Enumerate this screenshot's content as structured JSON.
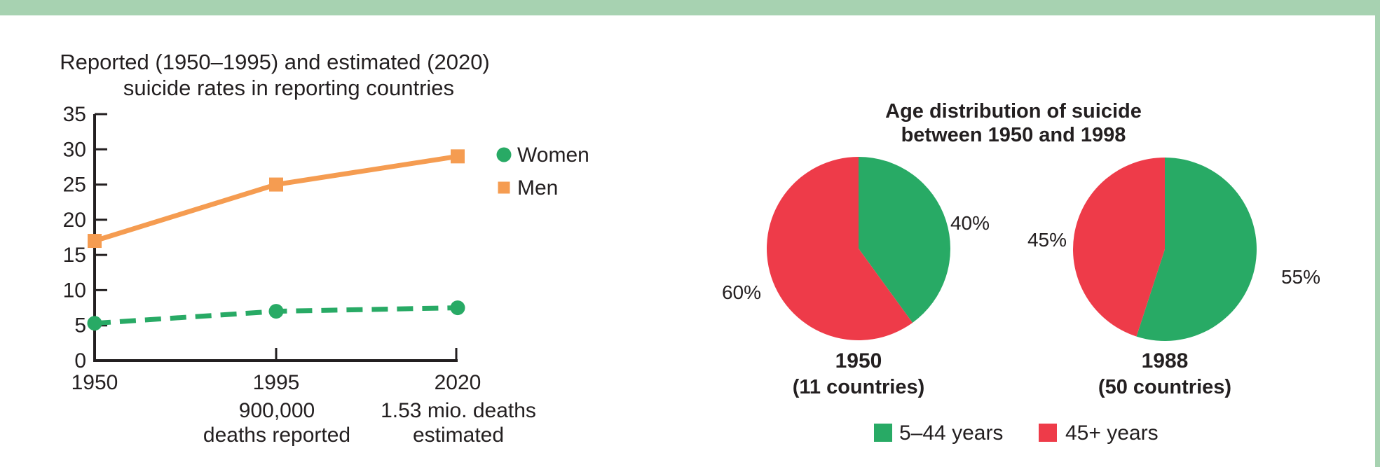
{
  "page": {
    "top_bar_color": "#a7d2b1",
    "right_bar_color": "#a7d2b1",
    "background": "#ffffff",
    "text_color": "#231f20"
  },
  "chart_data": [
    {
      "type": "line",
      "title_lines": [
        "Reported (1950–1995) and estimated (2020)",
        "suicide rates in reporting countries"
      ],
      "categories": [
        "1950",
        "1995",
        "2020"
      ],
      "category_sublabels": [
        [],
        [
          "900,000",
          "deaths reported"
        ],
        [
          "1.53 mio. deaths",
          "estimated"
        ]
      ],
      "ylim": [
        0,
        35
      ],
      "ytick_step": 5,
      "grid": false,
      "legend_position": "right",
      "series": [
        {
          "name": "Women",
          "values": [
            5.3,
            7,
            7.5
          ],
          "color": "#28aa65",
          "marker": "circle",
          "line": "dashed"
        },
        {
          "name": "Men",
          "values": [
            17,
            25,
            29
          ],
          "color": "#f59c51",
          "marker": "square",
          "line": "solid"
        }
      ]
    },
    {
      "type": "pie",
      "title_lines": [
        "Age distribution of suicide",
        "between 1950 and 1998"
      ],
      "legend": [
        {
          "label": "5–44 years",
          "color": "#28aa65"
        },
        {
          "label": "45+ years",
          "color": "#ee3b49"
        }
      ],
      "pies": [
        {
          "label": "1950",
          "sublabel": "(11 countries)",
          "slices": [
            {
              "name": "5–44 years",
              "pct": 40,
              "color": "#28aa65"
            },
            {
              "name": "45+ years",
              "pct": 60,
              "color": "#ee3b49"
            }
          ]
        },
        {
          "label": "1988",
          "sublabel": "(50 countries)",
          "slices": [
            {
              "name": "5–44 years",
              "pct": 55,
              "color": "#28aa65"
            },
            {
              "name": "45+ years",
              "pct": 45,
              "color": "#ee3b49"
            }
          ]
        }
      ]
    }
  ]
}
